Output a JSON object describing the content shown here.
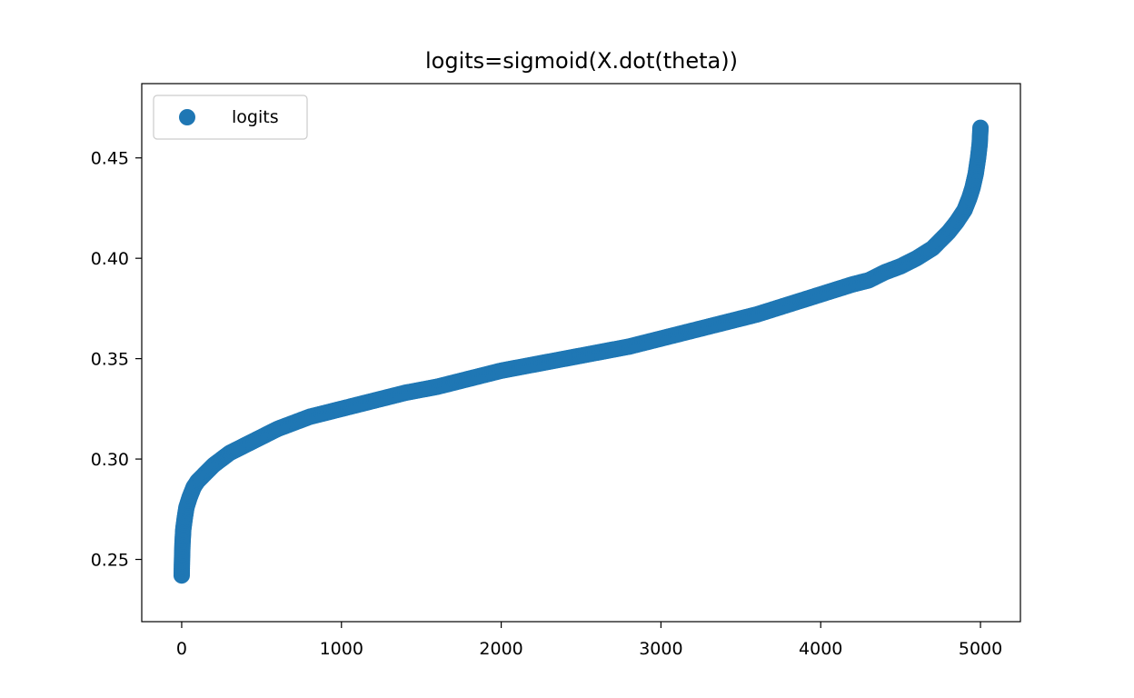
{
  "chart_data": {
    "type": "scatter",
    "title": "logits=sigmoid(X.dot(theta))",
    "xlabel": "",
    "ylabel": "",
    "xlim": [
      -250,
      5250
    ],
    "ylim": [
      0.219,
      0.487
    ],
    "xticks": [
      0,
      1000,
      2000,
      3000,
      4000,
      5000
    ],
    "yticks": [
      0.25,
      0.3,
      0.35,
      0.4,
      0.45
    ],
    "xtick_labels": [
      "0",
      "1000",
      "2000",
      "3000",
      "4000",
      "5000"
    ],
    "ytick_labels": [
      "0.25",
      "0.30",
      "0.35",
      "0.40",
      "0.45"
    ],
    "grid": false,
    "legend": {
      "placement": "upper-left",
      "entries": [
        "logits"
      ]
    },
    "series": [
      {
        "name": "logits",
        "color": "#1f77b4",
        "x": [
          0,
          2,
          5,
          10,
          20,
          30,
          50,
          75,
          100,
          150,
          200,
          250,
          300,
          350,
          400,
          500,
          600,
          700,
          800,
          900,
          1000,
          1200,
          1400,
          1600,
          1800,
          2000,
          2200,
          2400,
          2600,
          2800,
          3000,
          3200,
          3400,
          3600,
          3800,
          4000,
          4200,
          4300,
          4400,
          4500,
          4600,
          4700,
          4750,
          4800,
          4850,
          4900,
          4930,
          4950,
          4970,
          4985,
          4995,
          5000
        ],
        "y": [
          0.242,
          0.25,
          0.258,
          0.265,
          0.271,
          0.276,
          0.281,
          0.286,
          0.289,
          0.293,
          0.297,
          0.3,
          0.303,
          0.305,
          0.307,
          0.311,
          0.315,
          0.318,
          0.321,
          0.323,
          0.325,
          0.329,
          0.333,
          0.336,
          0.34,
          0.344,
          0.347,
          0.35,
          0.353,
          0.356,
          0.36,
          0.364,
          0.368,
          0.372,
          0.377,
          0.382,
          0.387,
          0.389,
          0.393,
          0.396,
          0.4,
          0.405,
          0.409,
          0.413,
          0.418,
          0.424,
          0.43,
          0.435,
          0.442,
          0.45,
          0.457,
          0.465
        ]
      }
    ]
  }
}
